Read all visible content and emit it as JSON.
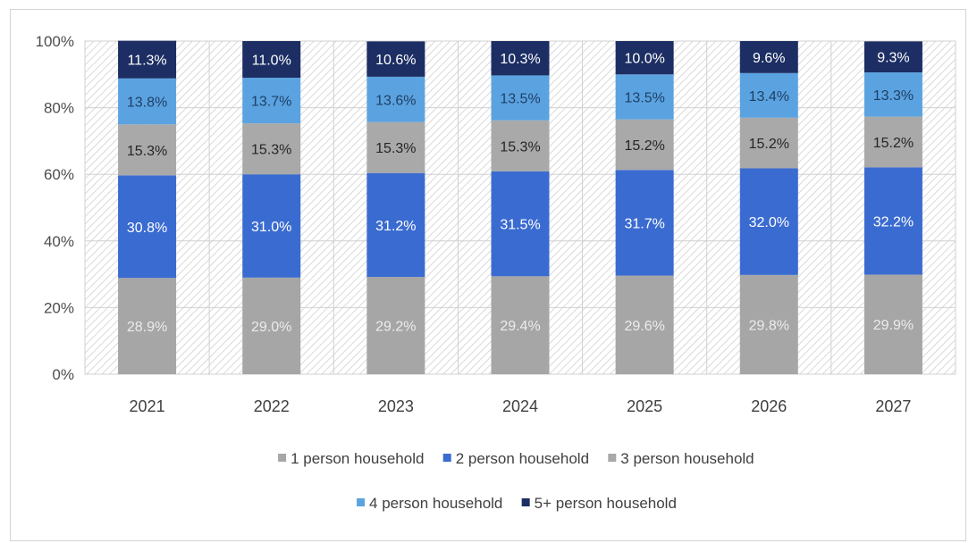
{
  "chart_data": {
    "type": "bar",
    "stacked": true,
    "percent_stacked": true,
    "categories": [
      "2021",
      "2022",
      "2023",
      "2024",
      "2025",
      "2026",
      "2027"
    ],
    "series": [
      {
        "name": "1 person household",
        "values": [
          28.9,
          29.0,
          29.2,
          29.4,
          29.6,
          29.8,
          29.9
        ],
        "color": "#a6a6a6",
        "label_color": "#ececec"
      },
      {
        "name": "2 person household",
        "values": [
          30.8,
          31.0,
          31.2,
          31.5,
          31.7,
          32.0,
          32.2
        ],
        "color": "#3a6bd0",
        "label_color": "#ffffff"
      },
      {
        "name": "3 person household",
        "values": [
          15.3,
          15.3,
          15.3,
          15.3,
          15.2,
          15.2,
          15.2
        ],
        "color": "#a9a9a9",
        "label_color": "#262626"
      },
      {
        "name": "4 person household",
        "values": [
          13.8,
          13.7,
          13.6,
          13.5,
          13.5,
          13.4,
          13.3
        ],
        "color": "#5ba3e0",
        "label_color": "#1f3f66"
      },
      {
        "name": "5+ person household",
        "values": [
          11.3,
          11.0,
          10.6,
          10.3,
          10.0,
          9.6,
          9.3
        ],
        "color": "#1c2e63",
        "label_color": "#ffffff"
      }
    ],
    "labels": [
      [
        "28.9%",
        "29.0%",
        "29.2%",
        "29.4%",
        "29.6%",
        "29.8%",
        "29.9%"
      ],
      [
        "30.8%",
        "31.0%",
        "31.2%",
        "31.5%",
        "31.7%",
        "32.0%",
        "32.2%"
      ],
      [
        "15.3%",
        "15.3%",
        "15.3%",
        "15.3%",
        "15.2%",
        "15.2%",
        "15.2%"
      ],
      [
        "13.8%",
        "13.7%",
        "13.6%",
        "13.5%",
        "13.5%",
        "13.4%",
        "13.3%"
      ],
      [
        "11.3%",
        "11.0%",
        "10.6%",
        "10.3%",
        "10.0%",
        "9.6%",
        "9.3%"
      ]
    ],
    "yticks": [
      "0%",
      "20%",
      "40%",
      "60%",
      "80%",
      "100%"
    ],
    "ylim": [
      0,
      100
    ],
    "grid": true,
    "legend": {
      "position": "bottom",
      "rows": [
        [
          "1 person household",
          "2 person household",
          "3 person household"
        ],
        [
          "4 person household",
          "5+ person household"
        ]
      ]
    }
  }
}
